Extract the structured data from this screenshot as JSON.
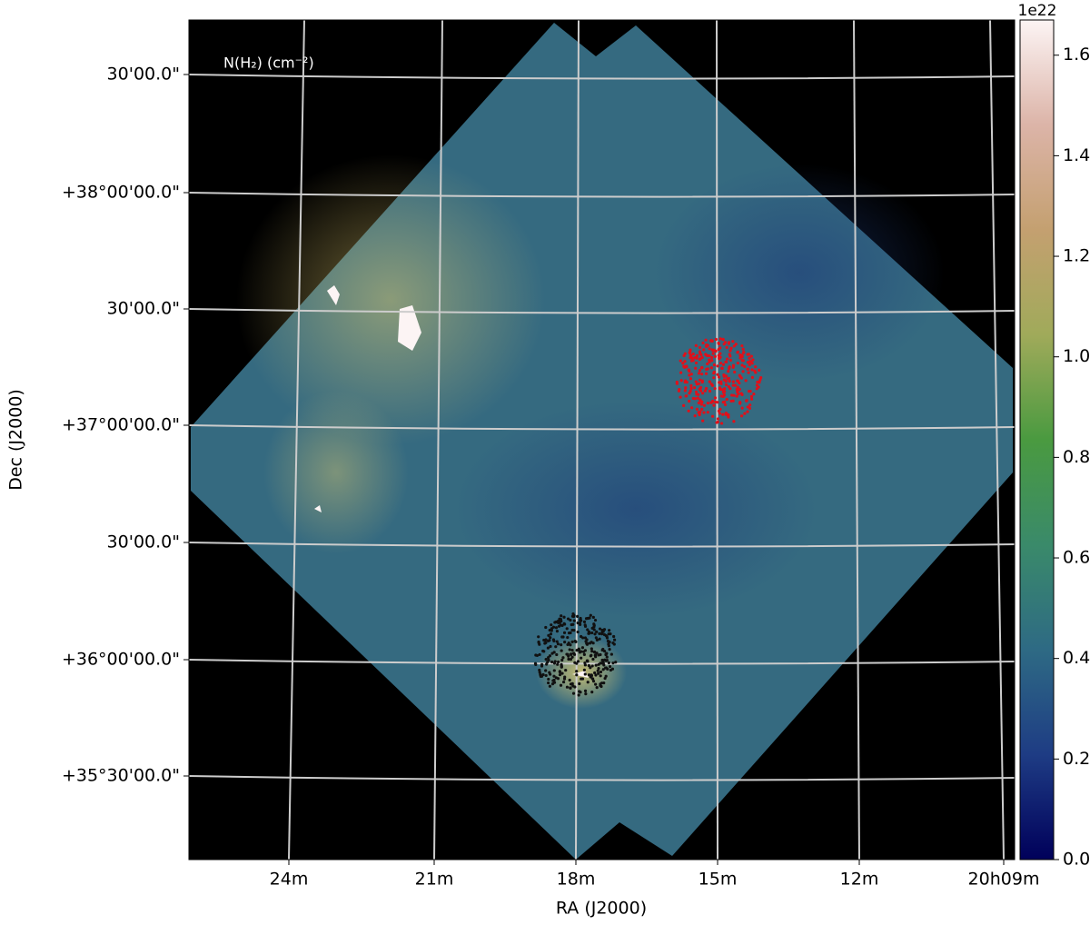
{
  "chart_data": {
    "type": "image",
    "annotation": "N(H₂) (cm⁻²)",
    "xlabel": "RA (J2000)",
    "ylabel": "Dec (J2000)",
    "xtick_labels": [
      "24m",
      "21m",
      "18m",
      "15m",
      "12m",
      "20h09m"
    ],
    "ytick_labels": [
      "30'00.0\"",
      "+38°00'00.0\"",
      "30'00.0\"",
      "+37°00'00.0\"",
      "30'00.0\"",
      "+36°00'00.0\"",
      "+35°30'00.0\""
    ],
    "grid": true,
    "colorbar": {
      "offset_label": "1e22",
      "lim": [
        0,
        1.67
      ],
      "ticks": [
        {
          "value": 0,
          "label": "0.0"
        },
        0.2,
        0.4,
        0.6,
        0.8,
        {
          "value": 1,
          "label": "1.0"
        },
        1.2,
        1.4,
        1.6
      ],
      "cmap": [
        "#00005a",
        "#1e3c84",
        "#2e6a84",
        "#3a8a6a",
        "#4a9a40",
        "#a0aa5a",
        "#c4a070",
        "#dcb4a8",
        "#fcf4f4"
      ]
    },
    "markers": [
      {
        "color": "#e0101a"
      },
      {
        "color": "#111111"
      }
    ]
  }
}
